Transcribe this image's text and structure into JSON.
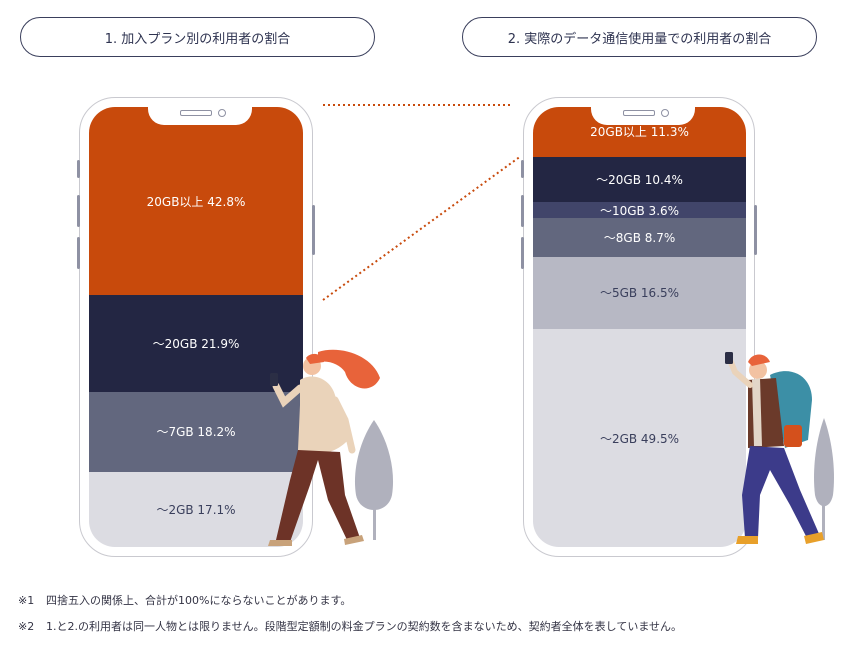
{
  "headings": {
    "left": "1. 加入プラン別の利用者の割合",
    "right": "2. 実際のデータ通信使用量での利用者の割合"
  },
  "chart_data": [
    {
      "type": "bar",
      "title": "1. 加入プラン別の利用者の割合",
      "stacked": true,
      "segments": [
        {
          "label": "20GB以上",
          "value": 42.8,
          "text": "20GB以上 42.8%",
          "color": "#c84a0c",
          "text_color": "dark"
        },
        {
          "label": "〜20GB",
          "value": 21.9,
          "text": "〜20GB 21.9%",
          "color": "#232643",
          "text_color": "dark"
        },
        {
          "label": "〜7GB",
          "value": 18.2,
          "text": "〜7GB 18.2%",
          "color": "#62677e",
          "text_color": "dark"
        },
        {
          "label": "〜2GB",
          "value": 17.1,
          "text": "〜2GB 17.1%",
          "color": "#dcdce2",
          "text_color": "light"
        }
      ]
    },
    {
      "type": "bar",
      "title": "2. 実際のデータ通信使用量での利用者の割合",
      "stacked": true,
      "segments": [
        {
          "label": "20GB以上",
          "value": 11.3,
          "text": "20GB以上 11.3%",
          "color": "#c84a0c",
          "text_color": "dark"
        },
        {
          "label": "〜20GB",
          "value": 10.4,
          "text": "〜20GB 10.4%",
          "color": "#232643",
          "text_color": "dark"
        },
        {
          "label": "〜10GB",
          "value": 3.6,
          "text": "〜10GB 3.6%",
          "color": "#41456a",
          "text_color": "dark"
        },
        {
          "label": "〜8GB",
          "value": 8.7,
          "text": "〜8GB 8.7%",
          "color": "#62677e",
          "text_color": "dark"
        },
        {
          "label": "〜5GB",
          "value": 16.5,
          "text": "〜5GB 16.5%",
          "color": "#b7b8c4",
          "text_color": "light"
        },
        {
          "label": "〜2GB",
          "value": 49.5,
          "text": "〜2GB 49.5%",
          "color": "#dcdce2",
          "text_color": "light"
        }
      ]
    }
  ],
  "notes": [
    {
      "mark": "※1",
      "text": "四捨五入の関係上、合計が100%にならないことがあります。"
    },
    {
      "mark": "※2",
      "text": "1.と2.の利用者は同一人物とは限りません。段階型定額制の料金プランの契約数を含まないため、契約者全体を表していません。"
    }
  ],
  "colors": {
    "accent_orange": "#c84a0c",
    "navy": "#232643",
    "connector": "#c84a0c",
    "outline": "#3a3f5c"
  }
}
